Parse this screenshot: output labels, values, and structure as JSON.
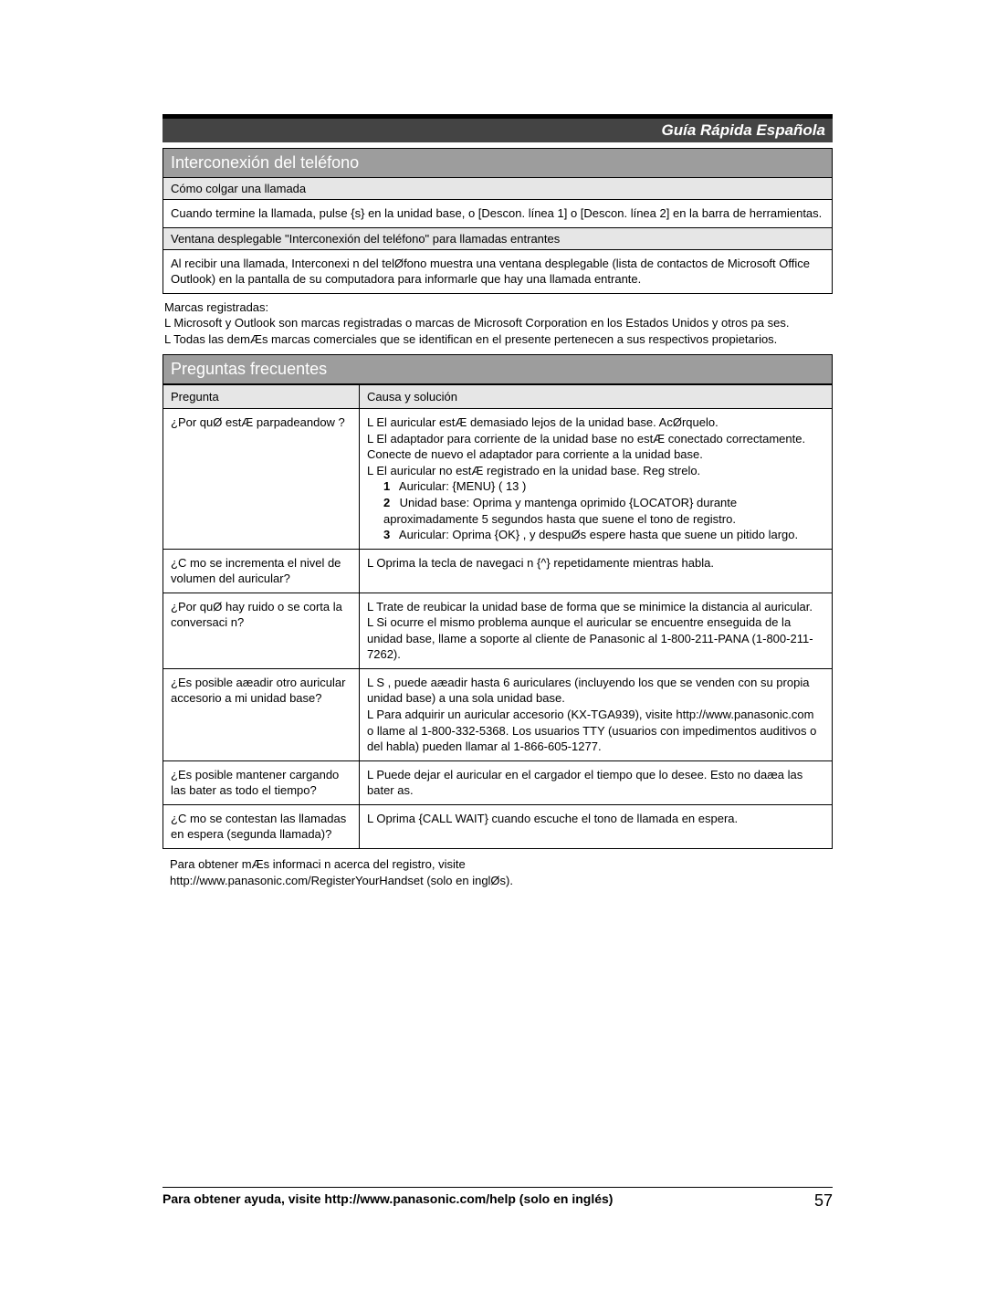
{
  "header": {
    "title": "Guía Rápida Española"
  },
  "section1": {
    "title": "Interconexión del teléfono",
    "sub1": "Cómo colgar una llamada",
    "body1": "Cuando termine la llamada, pulse {s}   en la unidad base, o [Descon. línea 1] o [Descon. línea 2] en la barra de herramientas.",
    "sub2": "Ventana desplegable \"Interconexión del teléfono\" para llamadas entrantes",
    "body2": "Al recibir una llamada,  Interconexi n del telØfono  muestra una ventana desplegable (lista de contactos de Microsoft Office Outlook) en la pantalla de su computadora para informarle que hay una llamada entrante.",
    "trademarks_label": "Marcas registradas:",
    "trademarks_l1": "L  Microsoft y Outlook son marcas registradas o marcas de Microsoft Corporation en los Estados Unidos y otros pa ses.",
    "trademarks_l2": "L  Todas las demÆs marcas comerciales que se identifican en el presente pertenecen a sus respectivos propietarios."
  },
  "faq": {
    "title": "Preguntas frecuentes",
    "col_q": "Pregunta",
    "col_a": "Causa y solución",
    "rows": [
      {
        "q": "¿Por quØ estÆ parpadeandow ?",
        "a1": "L  El auricular estÆ demasiado lejos de la unidad base. AcØrquelo.",
        "a2": "L  El adaptador para corriente de la unidad base no estÆ conectado correctamente. Conecte de nuevo el adaptador para corriente a la unidad base.",
        "a3": "L  El auricular no estÆ registrado en la unidad base. Reg strelo.",
        "n1": "Auricular: {MENU} (   13    )",
        "n2": "Unidad base: Oprima y mantenga oprimido {LOCATOR} durante aproximadamente 5 segundos hasta que suene el tono de registro.",
        "n3": "Auricular: Oprima {OK} , y despuØs espere hasta que suene un pitido largo."
      },
      {
        "q": "¿C mo se incrementa el nivel de volumen del auricular?",
        "a": "L  Oprima la tecla de navegaci n  {^}  repetidamente mientras habla."
      },
      {
        "q": "¿Por quØ hay ruido o se corta la conversaci n?",
        "a1": "L  Trate de reubicar la unidad base de forma que se minimice la distancia al auricular.",
        "a2": "L  Si ocurre el mismo problema aunque el auricular se encuentre enseguida de la unidad base, llame a soporte al cliente de Panasonic al 1-800-211-PANA (1-800-211-7262)."
      },
      {
        "q": "¿Es posible aæadir otro auricular accesorio a mi unidad base?",
        "a1": "L  S , puede aæadir hasta 6 auriculares (incluyendo los que se venden con su propia unidad base) a una sola unidad base.",
        "a2": "L  Para adquirir un auricular accesorio (KX-TGA939), visite http://www.panasonic.com",
        "a3": "o llame al 1-800-332-5368. Los usuarios TTY (usuarios con impedimentos auditivos o del habla) pueden llamar al 1-866-605-1277."
      },
      {
        "q": "¿Es posible mantener cargando las bater as todo el tiempo?",
        "a": "L  Puede dejar el auricular en el cargador el tiempo que lo desee. Esto no daæa las bater as."
      },
      {
        "q": "¿C mo se contestan las llamadas en espera (segunda llamada)?",
        "a": "L  Oprima {CALL WAIT}  cuando escuche el tono de llamada en espera."
      }
    ],
    "footer_l1": "Para obtener mÆs informaci n acerca del registro, visite",
    "footer_l2": "http://www.panasonic.com/RegisterYourHandset (solo en inglØs)."
  },
  "footer": {
    "text": "Para obtener ayuda, visite http://www.panasonic.com/help (solo en inglés)",
    "page": "57"
  }
}
